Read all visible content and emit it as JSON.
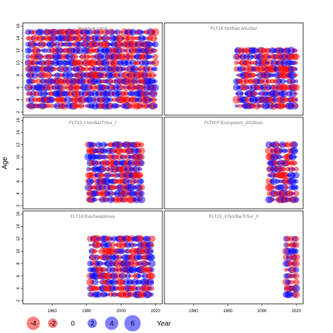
{
  "chart_data": {
    "type": "scatter",
    "subtype": "bubble-residuals",
    "ylabel": "Age",
    "legend_title": "Year",
    "legend_placement": "bottom-left",
    "positive_color": "#0000ff",
    "negative_color": "#ff0000",
    "x_ticks": [
      1960,
      1980,
      2000,
      2020
    ],
    "y_ticks": [
      2,
      4,
      6,
      8,
      10,
      12,
      14,
      16
    ],
    "xlim": [
      1943,
      2024
    ],
    "ylim": [
      1.5,
      16.5
    ],
    "legend_values": [
      -4,
      -2,
      0,
      2,
      4,
      6
    ],
    "panels": [
      {
        "title": "Residual catch",
        "years": [
          1946,
          2020
        ],
        "ages": [
          3,
          15
        ]
      },
      {
        "title": "FLT16:NorBarLofAcSur",
        "years": [
          1985,
          2020
        ],
        "ages": [
          3,
          12
        ]
      },
      {
        "title": "FLT15_I:NorBarTrSur_I",
        "years": [
          1981,
          2012
        ],
        "ages": [
          3,
          12
        ]
      },
      {
        "title": "FLT007:Ecosystem_2018corr",
        "years": [
          2004,
          2020
        ],
        "ages": [
          3,
          12
        ]
      },
      {
        "title": "FLT18:RusSweptArea",
        "years": [
          1982,
          2018
        ],
        "ages": [
          3,
          12
        ]
      },
      {
        "title": "FLT15_II:NorBarTrSur_II",
        "years": [
          2014,
          2020
        ],
        "ages": [
          3,
          12
        ]
      }
    ]
  }
}
